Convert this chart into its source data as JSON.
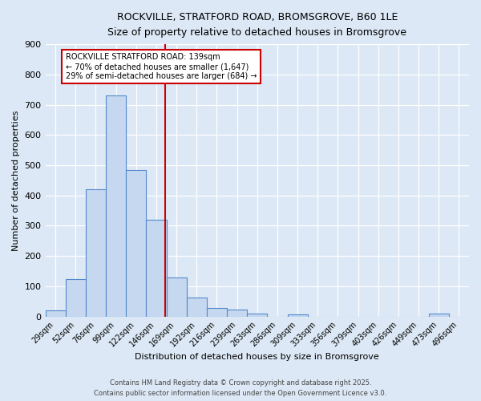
{
  "title1": "ROCKVILLE, STRATFORD ROAD, BROMSGROVE, B60 1LE",
  "title2": "Size of property relative to detached houses in Bromsgrove",
  "xlabel": "Distribution of detached houses by size in Bromsgrove",
  "ylabel": "Number of detached properties",
  "bar_labels": [
    "29sqm",
    "52sqm",
    "76sqm",
    "99sqm",
    "122sqm",
    "146sqm",
    "169sqm",
    "192sqm",
    "216sqm",
    "239sqm",
    "263sqm",
    "286sqm",
    "309sqm",
    "333sqm",
    "356sqm",
    "379sqm",
    "403sqm",
    "426sqm",
    "449sqm",
    "473sqm",
    "496sqm"
  ],
  "bar_values": [
    20,
    125,
    420,
    730,
    485,
    320,
    130,
    62,
    28,
    23,
    10,
    0,
    8,
    0,
    0,
    0,
    0,
    0,
    0,
    10,
    0
  ],
  "bar_color": "#c5d8f0",
  "bar_edge_color": "#5588cc",
  "vline_x": 5.42,
  "vline_color": "#cc0000",
  "annotation_title": "ROCKVILLE STRATFORD ROAD: 139sqm",
  "annotation_line1": "← 70% of detached houses are smaller (1,647)",
  "annotation_line2": "29% of semi-detached houses are larger (684) →",
  "annotation_box_color": "#ffffff",
  "annotation_box_edge": "#cc0000",
  "background_color": "#dce8f5",
  "plot_bg_color": "#dce8f5",
  "footer1": "Contains HM Land Registry data © Crown copyright and database right 2025.",
  "footer2": "Contains public sector information licensed under the Open Government Licence v3.0.",
  "ylim": [
    0,
    900
  ],
  "yticks": [
    0,
    100,
    200,
    300,
    400,
    500,
    600,
    700,
    800,
    900
  ]
}
